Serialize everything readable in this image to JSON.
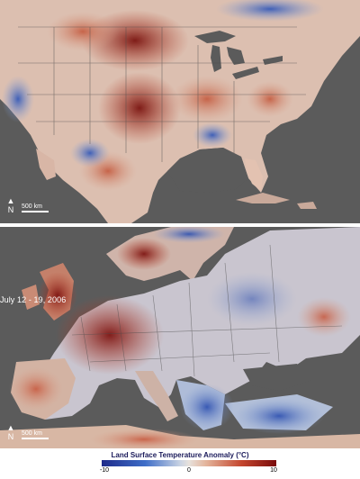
{
  "panels": {
    "us": {
      "scale_label": "500 km",
      "north_label": "N"
    },
    "eu": {
      "scale_label": "500 km",
      "north_label": "N",
      "date": "July 12 - 19, 2006"
    }
  },
  "legend": {
    "title": "Land Surface Temperature Anomaly (°C)",
    "ticks": [
      "-10",
      "0",
      "10"
    ]
  },
  "colors": {
    "ocean": "#5b5b5b",
    "cold": "#1d2a8a",
    "neutral": "#e7e1dc",
    "hot": "#7a0c0c"
  }
}
